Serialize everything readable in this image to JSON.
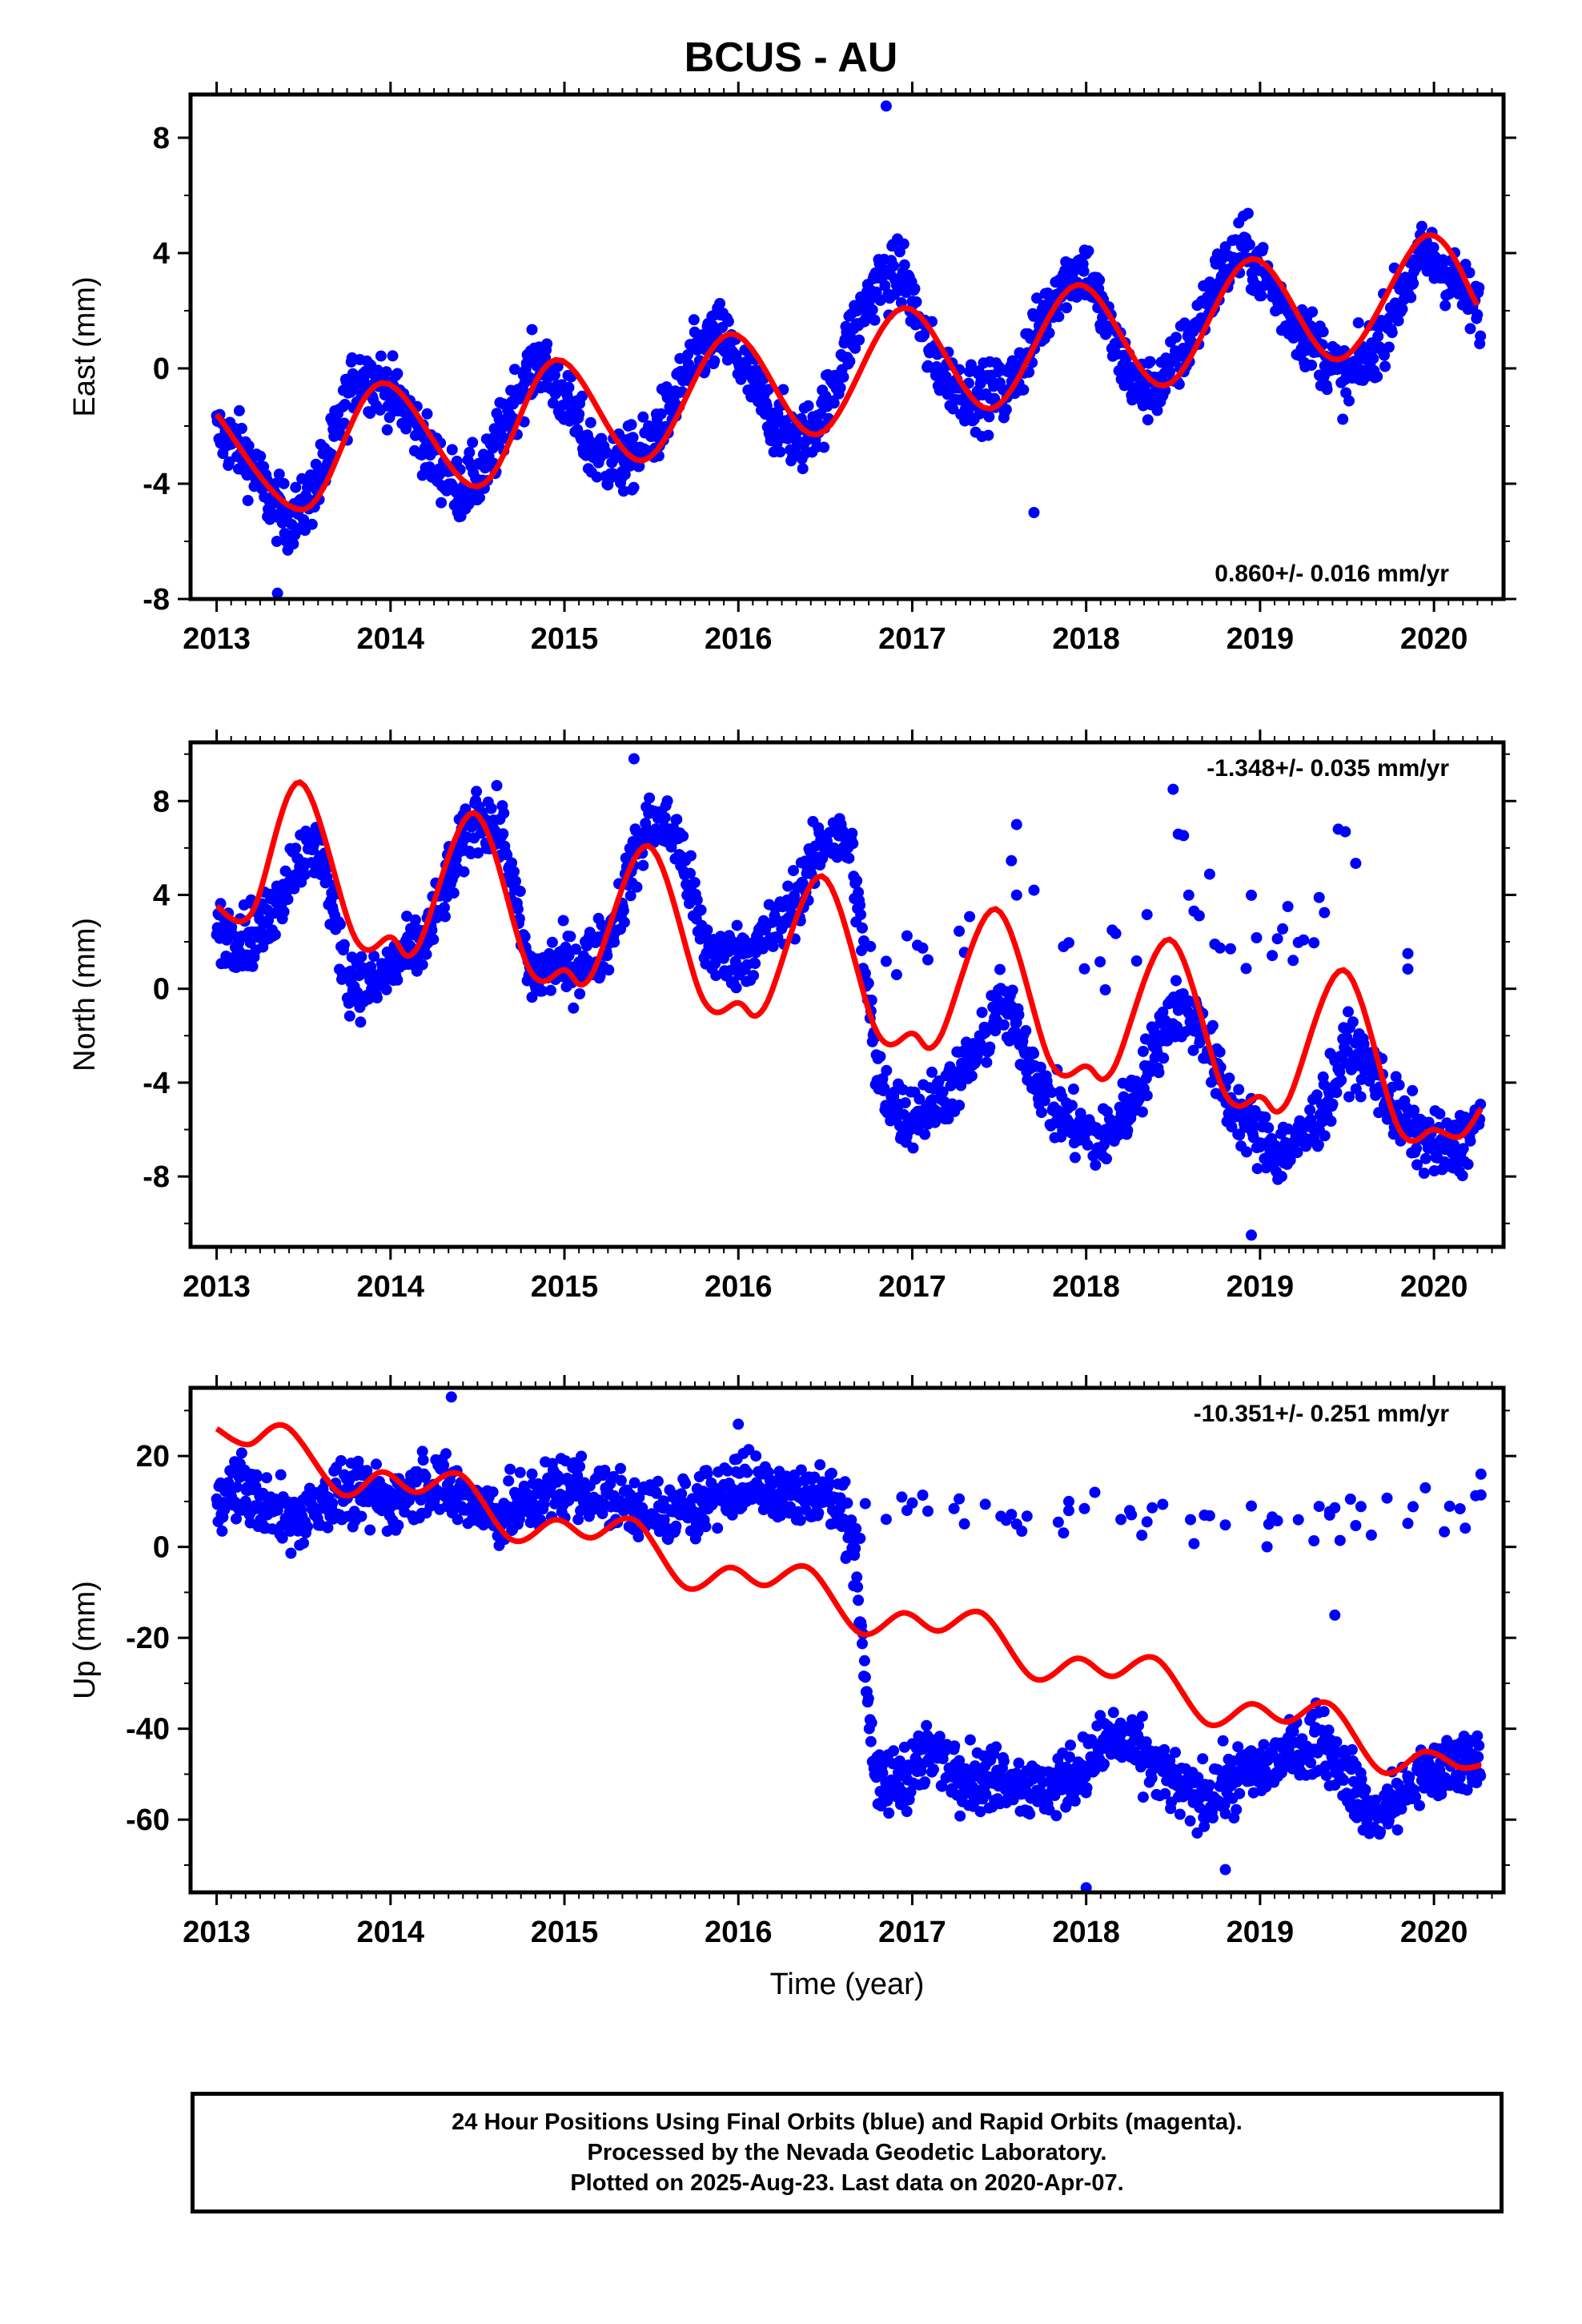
{
  "title": "BCUS - AU",
  "xlabel": "Time (year)",
  "footer": {
    "line1": "24 Hour Positions Using Final Orbits (blue) and Rapid Orbits (magenta).",
    "line2": "Processed by the Nevada Geodetic Laboratory.",
    "line3": "Plotted on 2025-Aug-23. Last data on 2020-Apr-07."
  },
  "colors": {
    "points": "#0000ff",
    "model": "#ff0000",
    "frame": "#000000"
  },
  "chart_data": [
    {
      "type": "scatter",
      "name": "East",
      "ylabel": "East (mm)",
      "rate_label": "0.860+/- 0.016 mm/yr",
      "rate_position": "bottom-right",
      "xlim": [
        2012.85,
        2020.4
      ],
      "ylim": [
        -8,
        9.5
      ],
      "yticks": [
        -8,
        -4,
        0,
        4,
        8
      ],
      "xticks": [
        2013,
        2014,
        2015,
        2016,
        2017,
        2018,
        2019,
        2020
      ],
      "model": {
        "name": "fit",
        "x": [
          2013.0,
          2013.5,
          2013.95,
          2014.5,
          2014.95,
          2015.45,
          2015.95,
          2016.45,
          2016.95,
          2017.45,
          2017.95,
          2018.45,
          2018.95,
          2019.45,
          2019.95,
          2020.25
        ],
        "values": [
          -1.6,
          -4.9,
          -0.5,
          -4.1,
          0.3,
          -3.2,
          1.2,
          -2.3,
          2.1,
          -1.4,
          2.9,
          -0.6,
          3.8,
          0.3,
          4.6,
          2.2
        ]
      },
      "points": {
        "name": "daily positions",
        "x": [
          2013.0,
          2013.15,
          2013.3,
          2013.4,
          2013.5,
          2013.65,
          2013.8,
          2013.95,
          2014.1,
          2014.25,
          2014.4,
          2014.55,
          2014.7,
          2014.85,
          2015.0,
          2015.15,
          2015.3,
          2015.45,
          2015.6,
          2015.75,
          2015.9,
          2016.05,
          2016.2,
          2016.35,
          2016.5,
          2016.65,
          2016.8,
          2016.95,
          2017.1,
          2017.25,
          2017.4,
          2017.55,
          2017.7,
          2017.85,
          2018.0,
          2018.15,
          2018.3,
          2018.45,
          2018.6,
          2018.75,
          2018.9,
          2019.05,
          2019.2,
          2019.35,
          2019.5,
          2019.65,
          2019.8,
          2019.95,
          2020.1,
          2020.27
        ],
        "values": [
          -2.2,
          -2.8,
          -4.5,
          -5.2,
          -5.0,
          -3.0,
          -0.2,
          -0.5,
          -1.5,
          -3.2,
          -4.2,
          -3.6,
          -1.2,
          0.3,
          -1.0,
          -2.8,
          -3.4,
          -2.9,
          -1.5,
          0.4,
          1.2,
          -0.2,
          -1.8,
          -2.6,
          -1.4,
          1.2,
          3.0,
          3.3,
          0.5,
          -0.6,
          -1.0,
          -0.8,
          1.0,
          3.0,
          3.5,
          1.0,
          -0.8,
          -0.5,
          1.0,
          3.0,
          4.2,
          3.0,
          1.5,
          0.6,
          -0.5,
          0.6,
          2.5,
          4.0,
          3.2,
          1.8
        ],
        "outliers": {
          "x": [
            2016.85,
            2013.35,
            2017.7
          ],
          "values": [
            9.1,
            -7.8,
            -5.0
          ]
        }
      }
    },
    {
      "type": "scatter",
      "name": "North",
      "ylabel": "North (mm)",
      "rate_label": "-1.348+/- 0.035 mm/yr",
      "rate_position": "top-right",
      "xlim": [
        2012.85,
        2020.4
      ],
      "ylim": [
        -11,
        10.5
      ],
      "yticks": [
        -8,
        -4,
        0,
        4,
        8
      ],
      "xticks": [
        2013,
        2014,
        2015,
        2016,
        2017,
        2018,
        2019,
        2020
      ],
      "model": {
        "name": "fit",
        "x": [
          2013.0,
          2013.2,
          2013.48,
          2013.8,
          2014.0,
          2014.15,
          2014.48,
          2014.8,
          2015.0,
          2015.15,
          2015.48,
          2015.8,
          2016.0,
          2016.15,
          2016.48,
          2016.8,
          2017.0,
          2017.15,
          2017.48,
          2017.8,
          2018.0,
          2018.15,
          2018.48,
          2018.8,
          2019.0,
          2019.15,
          2019.48,
          2019.8,
          2020.0,
          2020.15,
          2020.27
        ],
        "values": [
          3.5,
          3.2,
          8.8,
          2.1,
          2.2,
          1.7,
          7.5,
          0.8,
          0.8,
          0.5,
          6.1,
          -0.5,
          -0.6,
          -0.8,
          4.8,
          -1.9,
          -1.9,
          -2.2,
          3.4,
          -3.2,
          -3.3,
          -3.5,
          2.1,
          -4.5,
          -4.6,
          -4.9,
          0.8,
          -6.0,
          -6.0,
          -6.3,
          -5.1
        ]
      },
      "points": {
        "name": "daily positions",
        "x": [
          2013.0,
          2013.15,
          2013.3,
          2013.45,
          2013.6,
          2013.75,
          2013.9,
          2014.05,
          2014.2,
          2014.35,
          2014.5,
          2014.65,
          2014.8,
          2014.95,
          2015.1,
          2015.25,
          2015.4,
          2015.5,
          2015.65,
          2015.8,
          2015.95,
          2016.1,
          2016.25,
          2016.4,
          2016.5,
          2016.65,
          2016.8,
          2016.95,
          2017.1,
          2017.25,
          2017.4,
          2017.5,
          2017.65,
          2017.8,
          2017.95,
          2018.1,
          2018.25,
          2018.4,
          2018.5,
          2018.65,
          2018.8,
          2018.95,
          2019.1,
          2019.25,
          2019.4,
          2019.5,
          2019.65,
          2019.8,
          2019.95,
          2020.1,
          2020.27
        ],
        "values": [
          2.6,
          2.2,
          2.8,
          5.5,
          6.0,
          0.5,
          0.0,
          1.2,
          2.0,
          5.0,
          7.5,
          6.5,
          0.5,
          1.0,
          1.0,
          2.0,
          5.5,
          7.2,
          6.5,
          2.0,
          1.2,
          1.8,
          2.8,
          4.8,
          6.5,
          6.0,
          -3.8,
          -5.5,
          -5.0,
          -4.0,
          -2.5,
          -0.5,
          -2.5,
          -5.0,
          -6.0,
          -6.5,
          -5.0,
          -2.5,
          -0.8,
          -1.5,
          -4.5,
          -6.0,
          -7.0,
          -6.5,
          -4.5,
          -2.5,
          -3.5,
          -5.5,
          -6.5,
          -7.0,
          -5.5
        ],
        "outliers": {
          "x": [
            2017.6,
            2018.5,
            2019.45,
            2015.4,
            2018.95,
            2017.7,
            2018.15,
            2019.85
          ],
          "values": [
            7.0,
            8.5,
            6.8,
            9.8,
            -10.5,
            4.2,
            2.5,
            1.5
          ]
        }
      }
    },
    {
      "type": "scatter",
      "name": "Up",
      "ylabel": "Up (mm)",
      "rate_label": "-10.351+/- 0.251 mm/yr",
      "rate_position": "top-right",
      "xlim": [
        2012.85,
        2020.4
      ],
      "ylim": [
        -76,
        35
      ],
      "yticks": [
        -60,
        -40,
        -20,
        0,
        20
      ],
      "xticks": [
        2013,
        2014,
        2015,
        2016,
        2017,
        2018,
        2019,
        2020
      ],
      "model": {
        "name": "fit",
        "x": [
          2013.0,
          2013.18,
          2013.4,
          2013.72,
          2013.95,
          2014.15,
          2014.4,
          2014.7,
          2014.95,
          2015.15,
          2015.4,
          2015.7,
          2015.95,
          2016.15,
          2016.4,
          2016.7,
          2016.95,
          2017.15,
          2017.4,
          2017.7,
          2017.95,
          2018.15,
          2018.4,
          2018.7,
          2018.95,
          2019.15,
          2019.4,
          2019.7,
          2019.95,
          2020.15,
          2020.27
        ],
        "values": [
          26,
          22.5,
          26.5,
          11.5,
          16.5,
          12.0,
          16.0,
          1.5,
          6.0,
          2.0,
          6.0,
          -9.0,
          -4.5,
          -8.5,
          -4.5,
          -19.0,
          -14.5,
          -18.5,
          -14.5,
          -29.0,
          -24.5,
          -28.5,
          -24.5,
          -39.0,
          -34.5,
          -38.5,
          -34.5,
          -49.5,
          -45.0,
          -48.5,
          -48.0
        ]
      },
      "points": {
        "name": "daily positions",
        "x": [
          2013.0,
          2013.15,
          2013.3,
          2013.45,
          2013.6,
          2013.75,
          2013.9,
          2014.05,
          2014.2,
          2014.35,
          2014.5,
          2014.65,
          2014.8,
          2015.0,
          2015.15,
          2015.3,
          2015.45,
          2015.6,
          2015.75,
          2015.9,
          2016.05,
          2016.2,
          2016.35,
          2016.5,
          2016.65,
          2016.8,
          2016.95,
          2017.1,
          2017.25,
          2017.4,
          2017.55,
          2017.7,
          2017.85,
          2018.0,
          2018.15,
          2018.3,
          2018.45,
          2018.6,
          2018.75,
          2018.9,
          2019.05,
          2019.2,
          2019.35,
          2019.5,
          2019.65,
          2019.8,
          2019.95,
          2020.1,
          2020.27
        ],
        "values": [
          12,
          13,
          8,
          6,
          10,
          12,
          11,
          10,
          15,
          12,
          9,
          7,
          10,
          14,
          12,
          10,
          9,
          6,
          10,
          12,
          14,
          13,
          11,
          12,
          5,
          -55,
          -50,
          -46,
          -48,
          -52,
          -50,
          -54,
          -52,
          -48,
          -42,
          -45,
          -50,
          -55,
          -54,
          -50,
          -48,
          -45,
          -42,
          -50,
          -60,
          -55,
          -50,
          -48,
          -45
        ],
        "outliers": {
          "x": [
            2013.95,
            2014.35,
            2016.0,
            2017.6,
            2017.9,
            2018.05,
            2018.25,
            2018.6,
            2018.95,
            2019.05,
            2019.4,
            2019.95,
            2020.27,
            2018.0,
            2018.8,
            2019.43
          ],
          "values": [
            8,
            33,
            27,
            5,
            10,
            12,
            8,
            6,
            9,
            5,
            7,
            13,
            16,
            -75,
            -71,
            -15
          ]
        }
      }
    }
  ]
}
